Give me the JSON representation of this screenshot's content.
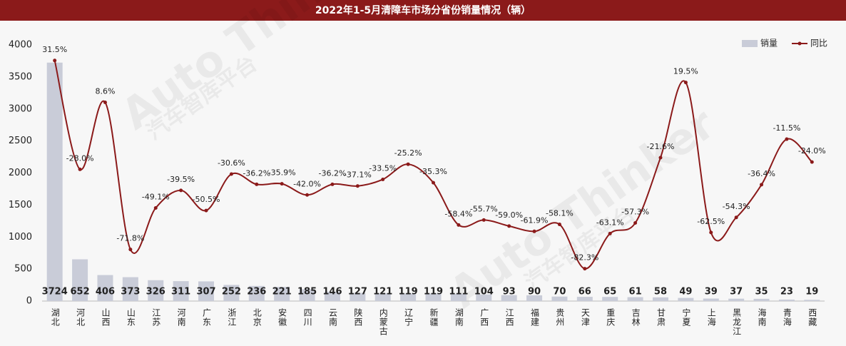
{
  "chart_data": {
    "type": "bar-line",
    "title": "2022年1-5月清障车市场分省份销量情况（辆）",
    "watermark": [
      "Auto Thinker",
      "汽车智库平台"
    ],
    "categories": [
      "湖北",
      "河北",
      "山西",
      "山东",
      "江苏",
      "河南",
      "广东",
      "浙江",
      "北京",
      "安徽",
      "四川",
      "云南",
      "陕西",
      "内蒙古",
      "辽宁",
      "新疆",
      "湖南",
      "广西",
      "江西",
      "福建",
      "贵州",
      "天津",
      "重庆",
      "吉林",
      "甘肃",
      "宁夏",
      "上海",
      "黑龙江",
      "海南",
      "青海",
      "西藏"
    ],
    "series": [
      {
        "name": "销量",
        "type": "bar",
        "color": "#c9ccd8",
        "values": [
          3724,
          652,
          406,
          373,
          326,
          311,
          307,
          252,
          236,
          221,
          185,
          146,
          127,
          121,
          119,
          119,
          111,
          104,
          93,
          90,
          70,
          66,
          65,
          61,
          58,
          49,
          39,
          37,
          35,
          23,
          19
        ]
      },
      {
        "name": "同比",
        "type": "line",
        "axis": "y2",
        "color": "#8b1a1a",
        "values": [
          31.5,
          -28.0,
          8.6,
          -71.8,
          -49.1,
          -39.5,
          -50.5,
          -30.6,
          -36.2,
          -35.9,
          -42.0,
          -36.2,
          -37.1,
          -33.5,
          -25.2,
          -35.3,
          -58.4,
          -55.7,
          -59.0,
          -61.9,
          -58.1,
          -82.3,
          -63.1,
          -57.3,
          -21.6,
          19.5,
          -62.5,
          -54.3,
          -36.4,
          -11.5,
          -24.0
        ],
        "value_labels": [
          "31.5%",
          "-28.0%",
          "8.6%",
          "-71.8%",
          "-49.1%",
          "-39.5%",
          "-50.5%",
          "-30.6%",
          "-36.2%",
          "-35.9%",
          "-42.0%",
          "-36.2%",
          "-37.1%",
          "-33.5%",
          "-25.2%",
          "-35.3%",
          "-58.4%",
          "-55.7%",
          "-59.0%",
          "-61.9%",
          "-58.1%",
          "-82.3%",
          "-63.1%",
          "-57.3%",
          "-21.6%",
          "19.5%",
          "-62.5%",
          "-54.3%",
          "-36.4%",
          "-11.5%",
          "-24.0%"
        ]
      }
    ],
    "ylim": [
      0,
      4000
    ],
    "yticks": [
      0,
      500,
      1000,
      1500,
      2000,
      2500,
      3000,
      3500,
      4000
    ],
    "y2lim": [
      -100,
      40
    ],
    "grid": false,
    "legend": "top-right"
  }
}
